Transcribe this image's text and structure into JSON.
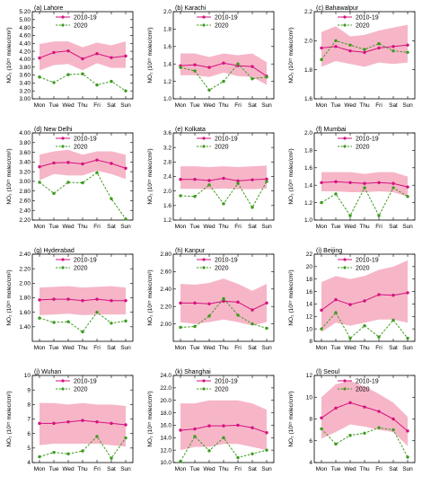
{
  "figure": {
    "colors": {
      "band": "#f6b6c8",
      "climatology": "#d6117e",
      "year2020": "#3d9a1f"
    },
    "legend": {
      "climatology": "2010-19",
      "year2020": "2020"
    }
  },
  "chart_data": [
    {
      "type": "line",
      "title": "(a) Lahore",
      "ylabel": "NO₂ (10¹⁵ molec/cm²)",
      "categories": [
        "Mon",
        "Tue",
        "Wed",
        "Thu",
        "Fri",
        "Sat",
        "Sun"
      ],
      "ylim": [
        3.0,
        5.2
      ],
      "yticks": [
        "3.00",
        "3.20",
        "3.40",
        "3.60",
        "3.80",
        "4.00",
        "4.20",
        "4.40",
        "4.60",
        "4.80",
        "5.00",
        "5.20"
      ],
      "band": {
        "upper": [
          4.38,
          4.45,
          4.45,
          4.3,
          4.42,
          4.35,
          4.45
        ],
        "lower": [
          3.72,
          3.85,
          3.88,
          3.72,
          3.9,
          3.78,
          3.78
        ]
      },
      "series": [
        {
          "name": "2010-19",
          "values": [
            4.03,
            4.17,
            4.21,
            4.01,
            4.14,
            4.04,
            4.08
          ]
        },
        {
          "name": "2020",
          "values": [
            3.55,
            3.41,
            3.61,
            3.63,
            3.35,
            3.44,
            3.2
          ]
        }
      ]
    },
    {
      "type": "line",
      "title": "(b) Karachi",
      "ylabel": "NO₂ (10¹⁵ molec/cm²)",
      "categories": [
        "Mon",
        "Tue",
        "Wed",
        "Thu",
        "Fri",
        "Sat",
        "Sun"
      ],
      "ylim": [
        1.0,
        2.0
      ],
      "yticks": [
        "1.0",
        "1.2",
        "1.4",
        "1.6",
        "1.8",
        "2.0"
      ],
      "band": {
        "upper": [
          1.52,
          1.52,
          1.48,
          1.52,
          1.5,
          1.52,
          1.42
        ],
        "lower": [
          1.27,
          1.27,
          1.25,
          1.3,
          1.26,
          1.25,
          1.16
        ]
      },
      "series": [
        {
          "name": "2010-19",
          "values": [
            1.38,
            1.39,
            1.36,
            1.41,
            1.38,
            1.37,
            1.26
          ]
        },
        {
          "name": "2020",
          "values": [
            1.36,
            1.32,
            1.1,
            1.2,
            1.4,
            1.23,
            1.25
          ]
        }
      ]
    },
    {
      "type": "line",
      "title": "(c) Bahawalpur",
      "ylabel": "NO₂ (10¹⁵ molec/cm²)",
      "categories": [
        "Mon",
        "Tue",
        "Wed",
        "Thu",
        "Fri",
        "Sat",
        "Sun"
      ],
      "ylim": [
        1.6,
        2.2
      ],
      "yticks": [
        "1.6",
        "1.8",
        "2.0",
        "2.2"
      ],
      "band": {
        "upper": [
          2.06,
          2.1,
          2.03,
          2.04,
          2.07,
          2.09,
          2.11
        ],
        "lower": [
          1.82,
          1.86,
          1.84,
          1.82,
          1.85,
          1.84,
          1.85
        ]
      },
      "series": [
        {
          "name": "2010-19",
          "values": [
            1.95,
            1.96,
            1.93,
            1.92,
            1.95,
            1.96,
            1.97
          ]
        },
        {
          "name": "2020",
          "values": [
            1.87,
            2.0,
            1.97,
            1.94,
            1.98,
            1.93,
            1.92
          ]
        }
      ]
    },
    {
      "type": "line",
      "title": "(d) New Delhi",
      "ylabel": "NO₂ (10¹⁵ molec/cm²)",
      "categories": [
        "Mon",
        "Tue",
        "Wed",
        "Thu",
        "Fri",
        "Sat",
        "Sun"
      ],
      "ylim": [
        2.2,
        4.0
      ],
      "yticks": [
        "2.20",
        "2.40",
        "2.60",
        "2.80",
        "3.00",
        "3.20",
        "3.40",
        "3.60",
        "3.80",
        "4.00"
      ],
      "band": {
        "upper": [
          3.55,
          3.62,
          3.65,
          3.55,
          3.62,
          3.62,
          3.55
        ],
        "lower": [
          3.02,
          3.15,
          3.12,
          3.12,
          3.22,
          3.15,
          3.05
        ]
      },
      "series": [
        {
          "name": "2010-19",
          "values": [
            3.3,
            3.38,
            3.39,
            3.36,
            3.44,
            3.37,
            3.27
          ]
        },
        {
          "name": "2020",
          "values": [
            2.98,
            2.75,
            2.98,
            2.97,
            3.18,
            2.64,
            2.22
          ]
        }
      ]
    },
    {
      "type": "line",
      "title": "(e) Kolkata",
      "ylabel": "NO₂ (10¹⁵ molec/cm²)",
      "categories": [
        "Mon",
        "Tue",
        "Wed",
        "Thu",
        "Fri",
        "Sat",
        "Sun"
      ],
      "ylim": [
        1.2,
        3.6
      ],
      "yticks": [
        "1.2",
        "1.6",
        "2.0",
        "2.4",
        "2.8",
        "3.2",
        "3.6"
      ],
      "band": {
        "upper": [
          2.68,
          2.68,
          2.66,
          2.68,
          2.66,
          2.68,
          2.7
        ],
        "lower": [
          2.06,
          2.06,
          2.05,
          2.07,
          2.05,
          2.05,
          2.07
        ]
      },
      "series": [
        {
          "name": "2010-19",
          "values": [
            2.32,
            2.32,
            2.29,
            2.35,
            2.28,
            2.31,
            2.33
          ]
        },
        {
          "name": "2020",
          "values": [
            1.87,
            1.85,
            2.17,
            1.65,
            2.21,
            1.55,
            2.26
          ]
        }
      ]
    },
    {
      "type": "line",
      "title": "(f) Mumbai",
      "ylabel": "NO₂ (10¹⁵ molec/cm²)",
      "categories": [
        "Mon",
        "Tue",
        "Wed",
        "Thu",
        "Fri",
        "Sat",
        "Sun"
      ],
      "ylim": [
        1.0,
        2.0
      ],
      "yticks": [
        "1.0",
        "1.2",
        "1.4",
        "1.6",
        "1.8",
        "2.0"
      ],
      "band": {
        "upper": [
          1.55,
          1.55,
          1.55,
          1.53,
          1.55,
          1.55,
          1.5
        ],
        "lower": [
          1.33,
          1.33,
          1.32,
          1.32,
          1.33,
          1.32,
          1.27
        ]
      },
      "series": [
        {
          "name": "2010-19",
          "values": [
            1.43,
            1.44,
            1.43,
            1.42,
            1.43,
            1.42,
            1.38
          ]
        },
        {
          "name": "2020",
          "values": [
            1.2,
            1.3,
            1.05,
            1.37,
            1.05,
            1.37,
            1.27
          ]
        }
      ]
    },
    {
      "type": "line",
      "title": "(g) Hyderabad",
      "ylabel": "NO₂ (10¹⁵ molec/cm²)",
      "categories": [
        "Mon",
        "Tue",
        "Wed",
        "Thu",
        "Fri",
        "Sat",
        "Sun"
      ],
      "ylim": [
        1.2,
        2.4
      ],
      "yticks": [
        "1.40",
        "1.60",
        "1.80",
        "2.00",
        "2.20",
        "2.40"
      ],
      "band": {
        "upper": [
          1.94,
          1.95,
          1.96,
          1.94,
          1.95,
          1.96,
          1.94
        ],
        "lower": [
          1.56,
          1.57,
          1.58,
          1.56,
          1.57,
          1.57,
          1.57
        ]
      },
      "series": [
        {
          "name": "2010-19",
          "values": [
            1.77,
            1.78,
            1.78,
            1.76,
            1.78,
            1.76,
            1.76
          ]
        },
        {
          "name": "2020",
          "values": [
            1.52,
            1.46,
            1.47,
            1.33,
            1.6,
            1.45,
            1.48
          ]
        }
      ]
    },
    {
      "type": "line",
      "title": "(h) Kanpur",
      "ylabel": "NO₂ (10¹⁵ molec/cm²)",
      "categories": [
        "Mon",
        "Tue",
        "Wed",
        "Thu",
        "Fri",
        "Sat",
        "Sun"
      ],
      "ylim": [
        1.8,
        2.8
      ],
      "yticks": [
        "2.00",
        "2.20",
        "2.40",
        "2.60",
        "2.80"
      ],
      "band": {
        "upper": [
          2.46,
          2.45,
          2.47,
          2.52,
          2.46,
          2.38,
          2.46
        ],
        "lower": [
          2.02,
          2.0,
          2.02,
          2.05,
          2.02,
          1.98,
          2.02
        ]
      },
      "series": [
        {
          "name": "2010-19",
          "values": [
            2.24,
            2.24,
            2.23,
            2.26,
            2.25,
            2.16,
            2.24
          ]
        },
        {
          "name": "2020",
          "values": [
            1.96,
            1.97,
            2.09,
            2.29,
            2.1,
            2.0,
            1.95
          ]
        }
      ]
    },
    {
      "type": "line",
      "title": "(i) Beijing",
      "ylabel": "NO₂ (10¹⁵ molec/cm²)",
      "categories": [
        "Mon",
        "Tue",
        "Wed",
        "Thu",
        "Fri",
        "Sat",
        "Sun"
      ],
      "ylim": [
        8,
        22
      ],
      "yticks": [
        "8",
        "10",
        "12",
        "14",
        "16",
        "18",
        "20",
        "22"
      ],
      "band": {
        "upper": [
          17.5,
          18.5,
          18.0,
          18.5,
          19.5,
          20.0,
          21.0
        ],
        "lower": [
          9.5,
          11.0,
          10.5,
          11.0,
          11.5,
          11.5,
          11.0
        ]
      },
      "series": [
        {
          "name": "2010-19",
          "values": [
            13.0,
            14.7,
            13.9,
            14.5,
            15.5,
            15.4,
            15.8
          ]
        },
        {
          "name": "2020",
          "values": [
            10.0,
            12.6,
            8.5,
            10.5,
            8.7,
            11.4,
            8.5
          ]
        }
      ]
    },
    {
      "type": "line",
      "title": "(j) Wuhan",
      "ylabel": "NO₂ (10¹⁵ molec/cm²)",
      "categories": [
        "Mon",
        "Tue",
        "Wed",
        "Thu",
        "Fri",
        "Sat",
        "Sun"
      ],
      "ylim": [
        4,
        10
      ],
      "yticks": [
        "4",
        "5",
        "6",
        "7",
        "8",
        "9",
        "10"
      ],
      "band": {
        "upper": [
          8.1,
          8.1,
          8.0,
          8.1,
          8.0,
          8.0,
          7.9
        ],
        "lower": [
          5.2,
          5.3,
          5.3,
          5.3,
          5.3,
          5.2,
          5.1
        ]
      },
      "series": [
        {
          "name": "2010-19",
          "values": [
            6.7,
            6.7,
            6.8,
            6.9,
            6.8,
            6.7,
            6.6
          ]
        },
        {
          "name": "2020",
          "values": [
            4.4,
            4.7,
            4.6,
            4.8,
            5.8,
            4.3,
            5.7
          ]
        }
      ]
    },
    {
      "type": "line",
      "title": "(k) Shanghai",
      "ylabel": "NO₂ (10¹⁵ molec/cm²)",
      "categories": [
        "Mon",
        "Tue",
        "Wed",
        "Thu",
        "Fri",
        "Sat",
        "Sun"
      ],
      "ylim": [
        10,
        24
      ],
      "yticks": [
        "10.0",
        "12.0",
        "14.0",
        "16.0",
        "18.0",
        "20.0",
        "22.0",
        "24.0"
      ],
      "band": {
        "upper": [
          19.5,
          19.5,
          20.0,
          20.0,
          20.0,
          19.5,
          18.5
        ],
        "lower": [
          12.0,
          12.5,
          12.5,
          13.0,
          13.0,
          12.5,
          12.0
        ]
      },
      "series": [
        {
          "name": "2010-19",
          "values": [
            15.2,
            15.4,
            15.9,
            15.9,
            16.0,
            15.6,
            14.8
          ]
        },
        {
          "name": "2020",
          "values": [
            10.2,
            14.2,
            11.9,
            14.0,
            10.8,
            11.4,
            12.0
          ]
        }
      ]
    },
    {
      "type": "line",
      "title": "(l) Seoul",
      "ylabel": "NO₂ (10¹⁵ molec/cm²)",
      "categories": [
        "Mon",
        "Tue",
        "Wed",
        "Thu",
        "Fri",
        "Sat",
        "Sun"
      ],
      "ylim": [
        4,
        12
      ],
      "yticks": [
        "4",
        "6",
        "8",
        "10",
        "12"
      ],
      "band": {
        "upper": [
          10.0,
          11.2,
          11.5,
          11.0,
          10.3,
          9.5,
          8.2
        ],
        "lower": [
          6.2,
          6.8,
          7.5,
          7.3,
          7.0,
          6.8,
          5.5
        ]
      },
      "series": [
        {
          "name": "2010-19",
          "values": [
            8.1,
            9.0,
            9.5,
            9.1,
            8.7,
            8.0,
            6.9
          ]
        },
        {
          "name": "2020",
          "values": [
            7.1,
            5.7,
            6.5,
            6.7,
            7.2,
            7.0,
            4.5
          ]
        }
      ]
    }
  ]
}
